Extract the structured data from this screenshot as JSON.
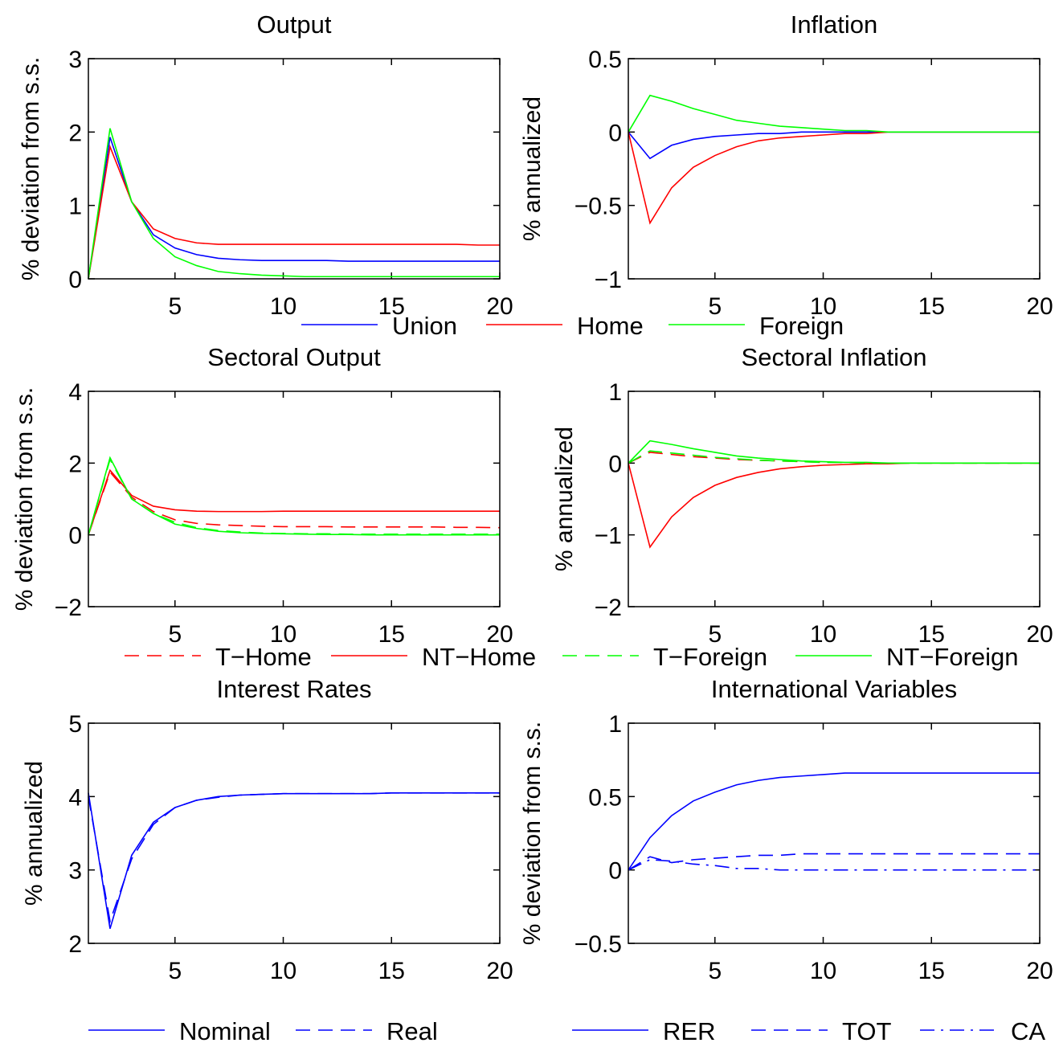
{
  "chart_data": [
    {
      "type": "line",
      "title": "Output",
      "y_label": "% deviation from s.s.",
      "x": [
        1,
        2,
        3,
        4,
        5,
        6,
        7,
        8,
        9,
        10,
        11,
        12,
        13,
        14,
        15,
        16,
        17,
        18,
        19,
        20
      ],
      "xlim": [
        1,
        20
      ],
      "xticks": [
        5,
        10,
        15,
        20
      ],
      "ylim": [
        0,
        3
      ],
      "yticks": [
        0,
        1,
        2,
        3
      ],
      "series": [
        {
          "name": "Union",
          "color": "#0000ff",
          "style": "solid",
          "values": [
            0,
            1.93,
            1.05,
            0.6,
            0.42,
            0.33,
            0.28,
            0.26,
            0.25,
            0.25,
            0.25,
            0.25,
            0.24,
            0.24,
            0.24,
            0.24,
            0.24,
            0.24,
            0.24,
            0.24
          ]
        },
        {
          "name": "Home",
          "color": "#ff0000",
          "style": "solid",
          "values": [
            0,
            1.8,
            1.05,
            0.68,
            0.55,
            0.49,
            0.47,
            0.47,
            0.47,
            0.47,
            0.47,
            0.47,
            0.47,
            0.47,
            0.47,
            0.47,
            0.47,
            0.47,
            0.46,
            0.46
          ]
        },
        {
          "name": "Foreign",
          "color": "#00ff00",
          "style": "solid",
          "values": [
            0,
            2.05,
            1.05,
            0.55,
            0.3,
            0.18,
            0.1,
            0.07,
            0.05,
            0.04,
            0.03,
            0.03,
            0.03,
            0.03,
            0.03,
            0.03,
            0.03,
            0.03,
            0.03,
            0.03
          ]
        }
      ]
    },
    {
      "type": "line",
      "title": "Inflation",
      "y_label": "% annualized",
      "x": [
        1,
        2,
        3,
        4,
        5,
        6,
        7,
        8,
        9,
        10,
        11,
        12,
        13,
        14,
        15,
        16,
        17,
        18,
        19,
        20
      ],
      "xlim": [
        1,
        20
      ],
      "xticks": [
        5,
        10,
        15,
        20
      ],
      "ylim": [
        -1,
        0.5
      ],
      "yticks": [
        {
          "value": -1,
          "label": "−1"
        },
        {
          "value": -0.5,
          "label": "−0.5"
        },
        0,
        0.5
      ],
      "series": [
        {
          "color": "#0000ff",
          "style": "solid",
          "values": [
            0,
            -0.18,
            -0.09,
            -0.05,
            -0.03,
            -0.02,
            -0.01,
            -0.01,
            0,
            0,
            0,
            0,
            0,
            0,
            0,
            0,
            0,
            0,
            0,
            0
          ]
        },
        {
          "color": "#ff0000",
          "style": "solid",
          "values": [
            0,
            -0.62,
            -0.38,
            -0.24,
            -0.16,
            -0.1,
            -0.06,
            -0.04,
            -0.03,
            -0.02,
            -0.01,
            -0.01,
            0,
            0,
            0,
            0,
            0,
            0,
            0,
            0
          ]
        },
        {
          "color": "#00ff00",
          "style": "solid",
          "values": [
            0,
            0.25,
            0.21,
            0.16,
            0.12,
            0.08,
            0.06,
            0.04,
            0.03,
            0.02,
            0.01,
            0.01,
            0,
            0,
            0,
            0,
            0,
            0,
            0,
            0
          ]
        }
      ]
    },
    {
      "type": "line",
      "title": "Sectoral Output",
      "y_label": "% deviation from s.s.",
      "x": [
        1,
        2,
        3,
        4,
        5,
        6,
        7,
        8,
        9,
        10,
        11,
        12,
        13,
        14,
        15,
        16,
        17,
        18,
        19,
        20
      ],
      "xlim": [
        1,
        20
      ],
      "xticks": [
        5,
        10,
        15,
        20
      ],
      "ylim": [
        -2,
        4
      ],
      "yticks": [
        {
          "value": -2,
          "label": "−2"
        },
        0,
        2,
        4
      ],
      "series": [
        {
          "name": "T−Home",
          "color": "#ff0000",
          "style": "dashed",
          "values": [
            0,
            1.75,
            1.05,
            0.65,
            0.42,
            0.32,
            0.28,
            0.26,
            0.24,
            0.23,
            0.23,
            0.23,
            0.22,
            0.22,
            0.22,
            0.22,
            0.22,
            0.21,
            0.21,
            0.2
          ]
        },
        {
          "name": "NT−Home",
          "color": "#ff0000",
          "style": "solid",
          "values": [
            0,
            1.8,
            1.1,
            0.8,
            0.7,
            0.66,
            0.65,
            0.65,
            0.65,
            0.66,
            0.66,
            0.66,
            0.66,
            0.66,
            0.66,
            0.66,
            0.66,
            0.66,
            0.66,
            0.66
          ]
        },
        {
          "name": "T−Foreign",
          "color": "#00ff00",
          "style": "dashed",
          "values": [
            0,
            2.1,
            1.0,
            0.6,
            0.35,
            0.2,
            0.12,
            0.08,
            0.05,
            0.04,
            0.03,
            0.03,
            0.02,
            0.02,
            0.02,
            0.02,
            0.02,
            0.02,
            0.02,
            0.02
          ]
        },
        {
          "name": "NT−Foreign",
          "color": "#00ff00",
          "style": "solid",
          "values": [
            0,
            2.15,
            1.0,
            0.6,
            0.3,
            0.18,
            0.1,
            0.06,
            0.04,
            0.03,
            0.02,
            0.01,
            0.01,
            0,
            0,
            0,
            0,
            0,
            0,
            0
          ]
        }
      ]
    },
    {
      "type": "line",
      "title": "Sectoral Inflation",
      "y_label": "% annualized",
      "x": [
        1,
        2,
        3,
        4,
        5,
        6,
        7,
        8,
        9,
        10,
        11,
        12,
        13,
        14,
        15,
        16,
        17,
        18,
        19,
        20
      ],
      "xlim": [
        1,
        20
      ],
      "xticks": [
        5,
        10,
        15,
        20
      ],
      "ylim": [
        -2,
        1
      ],
      "yticks": [
        {
          "value": -2,
          "label": "−2"
        },
        {
          "value": -1,
          "label": "−1"
        },
        0,
        1
      ],
      "series": [
        {
          "color": "#ff0000",
          "style": "dashed",
          "values": [
            0,
            0.15,
            0.12,
            0.09,
            0.07,
            0.05,
            0.04,
            0.03,
            0.02,
            0.01,
            0.01,
            0,
            0,
            0,
            0,
            0,
            0,
            0,
            0,
            0
          ]
        },
        {
          "color": "#ff0000",
          "style": "solid",
          "values": [
            0,
            -1.17,
            -0.75,
            -0.48,
            -0.31,
            -0.2,
            -0.13,
            -0.08,
            -0.05,
            -0.03,
            -0.02,
            -0.01,
            -0.01,
            0,
            0,
            0,
            0,
            0,
            0,
            0
          ]
        },
        {
          "color": "#00ff00",
          "style": "dashed",
          "values": [
            0,
            0.17,
            0.14,
            0.11,
            0.08,
            0.06,
            0.04,
            0.03,
            0.02,
            0.01,
            0.01,
            0,
            0,
            0,
            0,
            0,
            0,
            0,
            0,
            0
          ]
        },
        {
          "color": "#00ff00",
          "style": "solid",
          "values": [
            0,
            0.31,
            0.26,
            0.2,
            0.15,
            0.1,
            0.07,
            0.05,
            0.03,
            0.02,
            0.01,
            0.01,
            0,
            0,
            0,
            0,
            0,
            0,
            0,
            0
          ]
        }
      ]
    },
    {
      "type": "line",
      "title": "Interest Rates",
      "y_label": "% annualized",
      "x": [
        1,
        2,
        3,
        4,
        5,
        6,
        7,
        8,
        9,
        10,
        11,
        12,
        13,
        14,
        15,
        16,
        17,
        18,
        19,
        20
      ],
      "xlim": [
        1,
        20
      ],
      "xticks": [
        5,
        10,
        15,
        20
      ],
      "ylim": [
        2,
        5
      ],
      "yticks": [
        2,
        3,
        4,
        5
      ],
      "series": [
        {
          "name": "Nominal",
          "color": "#0000ff",
          "style": "solid",
          "values": [
            4.05,
            2.2,
            3.2,
            3.65,
            3.85,
            3.95,
            4.0,
            4.02,
            4.03,
            4.04,
            4.04,
            4.04,
            4.04,
            4.04,
            4.05,
            4.05,
            4.05,
            4.05,
            4.05,
            4.05
          ]
        },
        {
          "name": "Real",
          "color": "#0000ff",
          "style": "dashed",
          "values": [
            4.0,
            2.3,
            3.15,
            3.62,
            3.85,
            3.95,
            3.99,
            4.02,
            4.03,
            4.04,
            4.04,
            4.04,
            4.04,
            4.04,
            4.05,
            4.05,
            4.05,
            4.05,
            4.05,
            4.05
          ]
        }
      ]
    },
    {
      "type": "line",
      "title": "International Variables",
      "y_label": "% deviation from s.s.",
      "x": [
        1,
        2,
        3,
        4,
        5,
        6,
        7,
        8,
        9,
        10,
        11,
        12,
        13,
        14,
        15,
        16,
        17,
        18,
        19,
        20
      ],
      "xlim": [
        1,
        20
      ],
      "xticks": [
        5,
        10,
        15,
        20
      ],
      "ylim": [
        -0.5,
        1
      ],
      "yticks": [
        {
          "value": -0.5,
          "label": "−0.5"
        },
        0,
        0.5,
        1
      ],
      "series": [
        {
          "name": "RER",
          "color": "#0000ff",
          "style": "solid",
          "values": [
            0,
            0.22,
            0.37,
            0.47,
            0.53,
            0.58,
            0.61,
            0.63,
            0.64,
            0.65,
            0.66,
            0.66,
            0.66,
            0.66,
            0.66,
            0.66,
            0.66,
            0.66,
            0.66,
            0.66
          ]
        },
        {
          "name": "TOT",
          "color": "#0000ff",
          "style": "dashed",
          "values": [
            0,
            0.09,
            0.05,
            0.07,
            0.08,
            0.09,
            0.1,
            0.1,
            0.11,
            0.11,
            0.11,
            0.11,
            0.11,
            0.11,
            0.11,
            0.11,
            0.11,
            0.11,
            0.11,
            0.11
          ]
        },
        {
          "name": "CA",
          "color": "#0000ff",
          "style": "dashdot",
          "values": [
            0,
            0.07,
            0.06,
            0.04,
            0.03,
            0.01,
            0.01,
            0,
            0,
            0,
            0,
            0,
            0,
            0,
            0,
            0,
            0,
            0,
            0,
            0
          ]
        }
      ]
    }
  ]
}
